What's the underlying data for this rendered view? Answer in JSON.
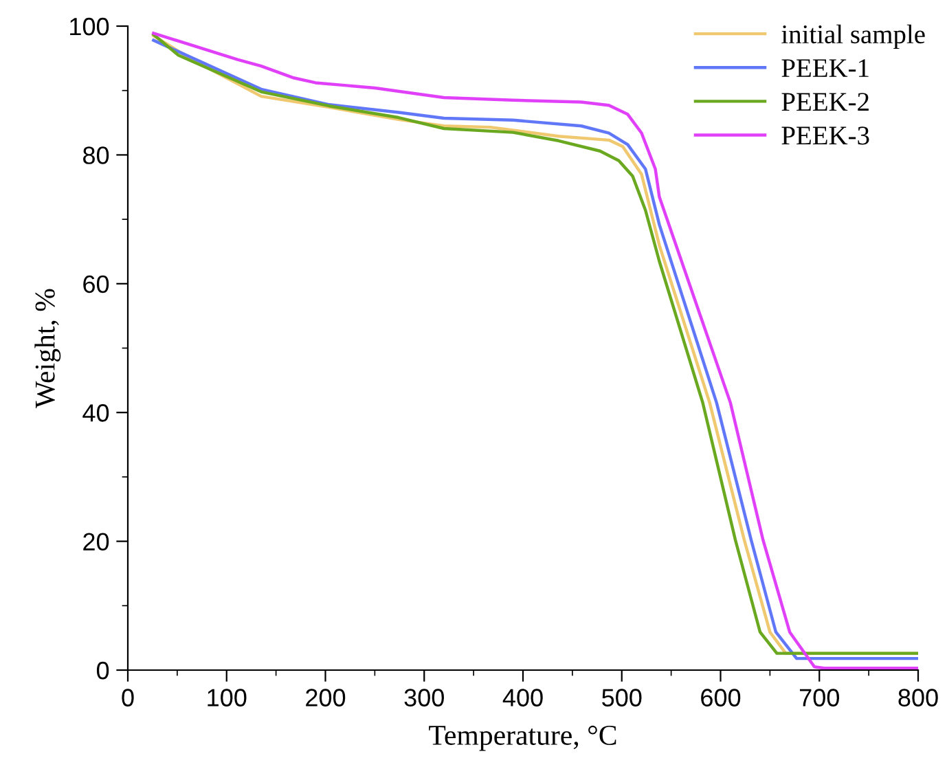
{
  "chart_data": {
    "type": "line",
    "xlabel": "Temperature, °C",
    "ylabel": "Weight, %",
    "xlim": [
      0,
      800
    ],
    "ylim": [
      0,
      100
    ],
    "xticks": [
      0,
      {
        "value": 50,
        "label": null
      },
      100,
      {
        "value": 150,
        "label": null
      },
      200,
      {
        "value": 250,
        "label": null
      },
      300,
      {
        "value": 350,
        "label": null
      },
      400,
      {
        "value": 450,
        "label": null
      },
      500,
      {
        "value": 550,
        "label": null
      },
      600,
      {
        "value": 650,
        "label": null
      },
      700,
      {
        "value": 750,
        "label": null
      },
      800
    ],
    "yticks": [
      0,
      {
        "value": 10,
        "label": null
      },
      20,
      {
        "value": 30,
        "label": null
      },
      40,
      {
        "value": 50,
        "label": null
      },
      60,
      {
        "value": 70,
        "label": null
      },
      80,
      {
        "value": 90,
        "label": null
      },
      100
    ],
    "legend": "top right",
    "grid": false,
    "marker": "none",
    "line_style": "solid",
    "series": [
      {
        "name": "initial sample",
        "color": "#f0c870",
        "x": [
          26,
          65,
          135,
          204,
          274,
          320,
          367,
          436,
          487,
          501,
          520,
          538,
          589,
          624,
          650,
          666,
          700,
          800
        ],
        "values": [
          98.5,
          94.8,
          89.1,
          87.4,
          85.5,
          84.5,
          84.3,
          82.9,
          82.3,
          81.3,
          77,
          66,
          41.5,
          20.2,
          5.9,
          2.6,
          2.6,
          2.6
        ]
      },
      {
        "name": "PEEK-1",
        "color": "#6078f8",
        "x": [
          26,
          135,
          204,
          274,
          320,
          390,
          459,
          487,
          506,
          524,
          538,
          596,
          631,
          656,
          677,
          700,
          800
        ],
        "values": [
          97.8,
          90.2,
          87.8,
          86.6,
          85.7,
          85.4,
          84.5,
          83.4,
          81.6,
          77.8,
          69.2,
          41.5,
          20.2,
          5.9,
          1.8,
          1.8,
          1.8
        ]
      },
      {
        "name": "PEEK-2",
        "color": "#6aa820",
        "x": [
          26,
          51,
          135,
          204,
          274,
          320,
          390,
          436,
          478,
          497,
          511,
          524,
          538,
          582,
          615,
          640,
          657,
          700,
          800
        ],
        "values": [
          98.7,
          95.5,
          89.8,
          87.6,
          85.8,
          84.1,
          83.5,
          82.2,
          80.6,
          79.1,
          76.7,
          71.4,
          63.5,
          41.5,
          20.2,
          5.9,
          2.6,
          2.6,
          2.6
        ]
      },
      {
        "name": "PEEK-3",
        "color": "#e040f8",
        "x": [
          26,
          111,
          135,
          167,
          190,
          250,
          320,
          390,
          459,
          487,
          506,
          520,
          534,
          538,
          610,
          643,
          670,
          695,
          705,
          800
        ],
        "values": [
          98.9,
          94.8,
          93.8,
          92,
          91.2,
          90.4,
          88.9,
          88.5,
          88.2,
          87.7,
          86.3,
          83.4,
          77.8,
          73.5,
          41.5,
          20.2,
          5.9,
          0.5,
          0.3,
          0.3
        ]
      }
    ]
  }
}
